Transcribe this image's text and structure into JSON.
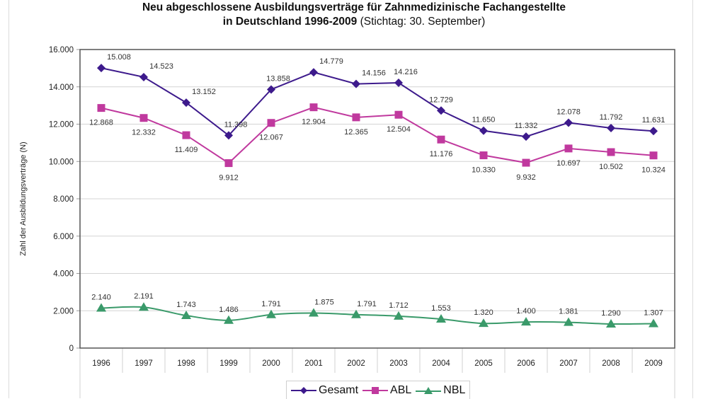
{
  "title": {
    "main_line1": "Neu abgeschlossene Ausbildungsverträge für Zahnmedizinische Fachangestellte",
    "main_line2": "in Deutschland 1996-2009",
    "subtitle": "(Stichtag: 30. September)"
  },
  "chart_data": {
    "type": "line",
    "title": "Neu abgeschlossene Ausbildungsverträge für Zahnmedizinische Fachangestellte in Deutschland 1996-2009 (Stichtag: 30. September)",
    "xlabel": "",
    "ylabel": "Zahl der Ausbildungsverträge (N)",
    "ylim": [
      0,
      16000
    ],
    "yticks": [
      0,
      2000,
      4000,
      6000,
      8000,
      10000,
      12000,
      14000,
      16000
    ],
    "ytick_labels": [
      "0",
      "2.000",
      "4.000",
      "6.000",
      "8.000",
      "10.000",
      "12.000",
      "14.000",
      "16.000"
    ],
    "grid": true,
    "legend_position": "bottom",
    "categories": [
      "1996",
      "1997",
      "1998",
      "1999",
      "2000",
      "2001",
      "2002",
      "2003",
      "2004",
      "2005",
      "2006",
      "2007",
      "2008",
      "2009"
    ],
    "series": [
      {
        "name": "Gesamt",
        "color": "#3d1a8c",
        "marker": "diamond",
        "values": [
          15008,
          14523,
          13152,
          11398,
          13858,
          14779,
          14156,
          14216,
          12729,
          11650,
          11332,
          12078,
          11792,
          11631
        ],
        "labels": [
          "15.008",
          "14.523",
          "13.152",
          "11.398",
          "13.858",
          "14.779",
          "14.156",
          "14.216",
          "12.729",
          "11.650",
          "11.332",
          "12.078",
          "11.792",
          "11.631"
        ]
      },
      {
        "name": "ABL",
        "color": "#c0399e",
        "marker": "square",
        "values": [
          12868,
          12332,
          11409,
          9912,
          12067,
          12904,
          12365,
          12504,
          11176,
          10330,
          9932,
          10697,
          10502,
          10324
        ],
        "labels": [
          "12.868",
          "12.332",
          "11.409",
          "9.912",
          "12.067",
          "12.904",
          "12.365",
          "12.504",
          "11.176",
          "10.330",
          "9.932",
          "10.697",
          "10.502",
          "10.324"
        ]
      },
      {
        "name": "NBL",
        "color": "#3a9a6a",
        "marker": "triangle",
        "values": [
          2140,
          2191,
          1743,
          1486,
          1791,
          1875,
          1791,
          1712,
          1553,
          1320,
          1400,
          1381,
          1290,
          1307
        ],
        "labels": [
          "2.140",
          "2.191",
          "1.743",
          "1.486",
          "1.791",
          "1.875",
          "1.791",
          "1.712",
          "1.553",
          "1.320",
          "1.400",
          "1.381",
          "1.290",
          "1.307"
        ]
      }
    ]
  }
}
